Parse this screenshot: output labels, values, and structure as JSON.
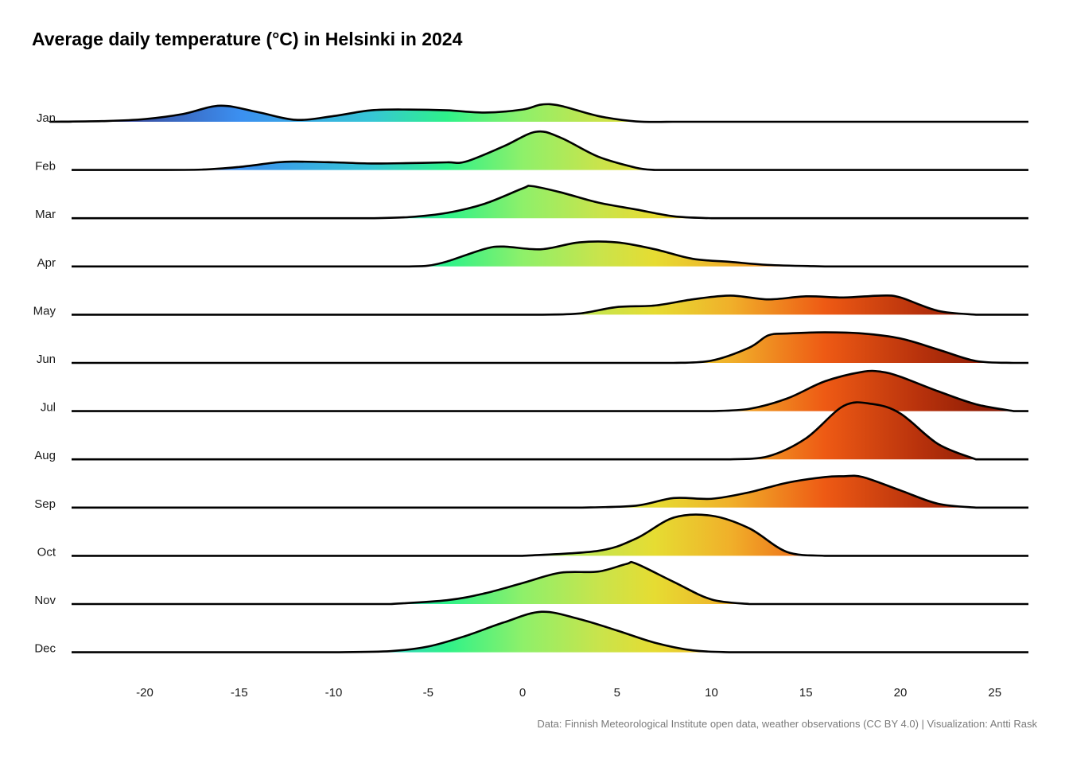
{
  "chart_data": {
    "type": "ridgeline",
    "title": "Average daily temperature (°C) in Helsinki in 2024",
    "xlabel": "",
    "ylabel": "",
    "xlim": [
      -24,
      27
    ],
    "x_ticks": [
      -20,
      -15,
      -10,
      -5,
      0,
      5,
      10,
      15,
      20,
      25
    ],
    "grid": false,
    "color_scale": {
      "stops": [
        {
          "t": -22,
          "color": "#3a3f8f"
        },
        {
          "t": -15,
          "color": "#3b8ff0"
        },
        {
          "t": -8,
          "color": "#36c6d6"
        },
        {
          "t": -4,
          "color": "#2ef289"
        },
        {
          "t": 0,
          "color": "#8ef06a"
        },
        {
          "t": 4,
          "color": "#c8e44c"
        },
        {
          "t": 7,
          "color": "#e6dc32"
        },
        {
          "t": 11,
          "color": "#f0b02a"
        },
        {
          "t": 16,
          "color": "#ee5a14"
        },
        {
          "t": 21,
          "color": "#b8320c"
        },
        {
          "t": 25,
          "color": "#8a1a04"
        }
      ]
    },
    "series": [
      {
        "name": "Jan",
        "x": [
          -25,
          -22,
          -20,
          -18,
          -16,
          -14,
          -12,
          -10,
          -8,
          -6,
          -4,
          -2,
          0,
          1,
          2,
          4,
          6,
          8
        ],
        "y": [
          0,
          0.02,
          0.07,
          0.2,
          0.42,
          0.25,
          0.05,
          0.15,
          0.3,
          0.32,
          0.3,
          0.24,
          0.32,
          0.45,
          0.42,
          0.15,
          0.01,
          0
        ]
      },
      {
        "name": "Feb",
        "x": [
          -20,
          -17,
          -15,
          -13,
          -12,
          -10,
          -8,
          -6,
          -4,
          -3,
          -1,
          0.7,
          2,
          4,
          6,
          7
        ],
        "y": [
          0,
          0.01,
          0.08,
          0.2,
          0.22,
          0.2,
          0.17,
          0.18,
          0.2,
          0.22,
          0.62,
          1.0,
          0.85,
          0.35,
          0.06,
          0
        ]
      },
      {
        "name": "Mar",
        "x": [
          -8,
          -6,
          -4,
          -2,
          0,
          0.5,
          2,
          4,
          6,
          8,
          10
        ],
        "y": [
          0,
          0.03,
          0.14,
          0.38,
          0.78,
          0.84,
          0.68,
          0.41,
          0.23,
          0.05,
          0
        ]
      },
      {
        "name": "Apr",
        "x": [
          -6,
          -5,
          -4,
          -2,
          -1,
          1,
          3,
          5,
          7,
          9,
          11,
          13,
          16
        ],
        "y": [
          0,
          0.02,
          0.13,
          0.46,
          0.52,
          0.45,
          0.63,
          0.63,
          0.45,
          0.2,
          0.12,
          0.04,
          0
        ]
      },
      {
        "name": "May",
        "x": [
          1,
          3,
          5,
          7,
          9,
          11,
          13,
          15,
          17,
          19,
          20,
          22,
          24
        ],
        "y": [
          0,
          0.03,
          0.2,
          0.24,
          0.4,
          0.5,
          0.4,
          0.48,
          0.45,
          0.5,
          0.45,
          0.1,
          0
        ]
      },
      {
        "name": "Jun",
        "x": [
          8,
          10,
          12,
          13,
          14,
          16,
          18,
          20,
          22,
          24,
          26
        ],
        "y": [
          0,
          0.06,
          0.4,
          0.72,
          0.77,
          0.8,
          0.77,
          0.64,
          0.35,
          0.05,
          0
        ]
      },
      {
        "name": "Jul",
        "x": [
          10,
          12,
          14,
          16,
          18,
          19,
          20,
          22,
          24,
          26
        ],
        "y": [
          0,
          0.06,
          0.33,
          0.78,
          1.03,
          1.03,
          0.9,
          0.52,
          0.18,
          0
        ]
      },
      {
        "name": "Aug",
        "x": [
          11,
          13,
          15,
          17,
          18.5,
          20,
          22,
          24
        ],
        "y": [
          0,
          0.08,
          0.55,
          1.4,
          1.45,
          1.2,
          0.4,
          0
        ]
      },
      {
        "name": "Sep",
        "x": [
          3,
          6,
          8,
          10,
          12,
          14,
          16,
          17,
          18,
          20,
          22,
          24
        ],
        "y": [
          0,
          0.05,
          0.25,
          0.23,
          0.4,
          0.65,
          0.8,
          0.82,
          0.8,
          0.45,
          0.1,
          0
        ]
      },
      {
        "name": "Oct",
        "x": [
          0,
          4,
          6,
          8,
          10,
          12,
          14,
          16
        ],
        "y": [
          0,
          0.13,
          0.45,
          1.0,
          1.05,
          0.72,
          0.1,
          0
        ]
      },
      {
        "name": "Nov",
        "x": [
          -7,
          -4,
          -2,
          0,
          2,
          4,
          5.5,
          6,
          8,
          10,
          12
        ],
        "y": [
          0,
          0.1,
          0.28,
          0.55,
          0.82,
          0.85,
          1.05,
          1.06,
          0.58,
          0.12,
          0
        ]
      },
      {
        "name": "Dec",
        "x": [
          -10,
          -7,
          -5,
          -3,
          -1,
          1,
          3,
          5,
          7,
          9,
          11
        ],
        "y": [
          0,
          0.03,
          0.15,
          0.43,
          0.78,
          1.06,
          0.87,
          0.57,
          0.25,
          0.05,
          0
        ]
      }
    ]
  },
  "caption": "Data: Finnish Meteorological Institute open data, weather observations (CC BY 4.0) | Visualization: Antti Rask"
}
